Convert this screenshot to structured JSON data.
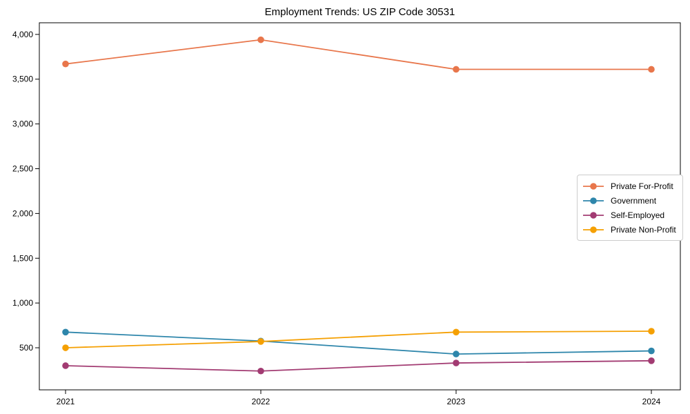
{
  "chart_data": {
    "type": "line",
    "title": "Employment Trends: US ZIP Code 30531",
    "x": [
      2021,
      2022,
      2023,
      2024
    ],
    "x_tick_labels": [
      "2021",
      "2022",
      "2023",
      "2024"
    ],
    "series": [
      {
        "name": "Private For-Profit",
        "color": "#E8764B",
        "values": [
          3670,
          3940,
          3610,
          3610
        ]
      },
      {
        "name": "Government",
        "color": "#2E86AB",
        "values": [
          675,
          575,
          430,
          465
        ]
      },
      {
        "name": "Self-Employed",
        "color": "#A23B72",
        "values": [
          300,
          240,
          330,
          355
        ]
      },
      {
        "name": "Private Non-Profit",
        "color": "#F5A003",
        "values": [
          500,
          570,
          675,
          685
        ]
      }
    ],
    "xlabel": "",
    "ylabel": "",
    "ylim": [
      30,
      4130
    ],
    "y_ticks": [
      500,
      1000,
      1500,
      2000,
      2500,
      3000,
      3500,
      4000
    ],
    "y_tick_labels": [
      "500",
      "1,000",
      "1,500",
      "2,000",
      "2,500",
      "3,000",
      "3,500",
      "4,000"
    ],
    "grid": false,
    "legend_position": "center right",
    "marker": "circle",
    "frame_color": "#000000",
    "tick_label_color": "#000000"
  }
}
